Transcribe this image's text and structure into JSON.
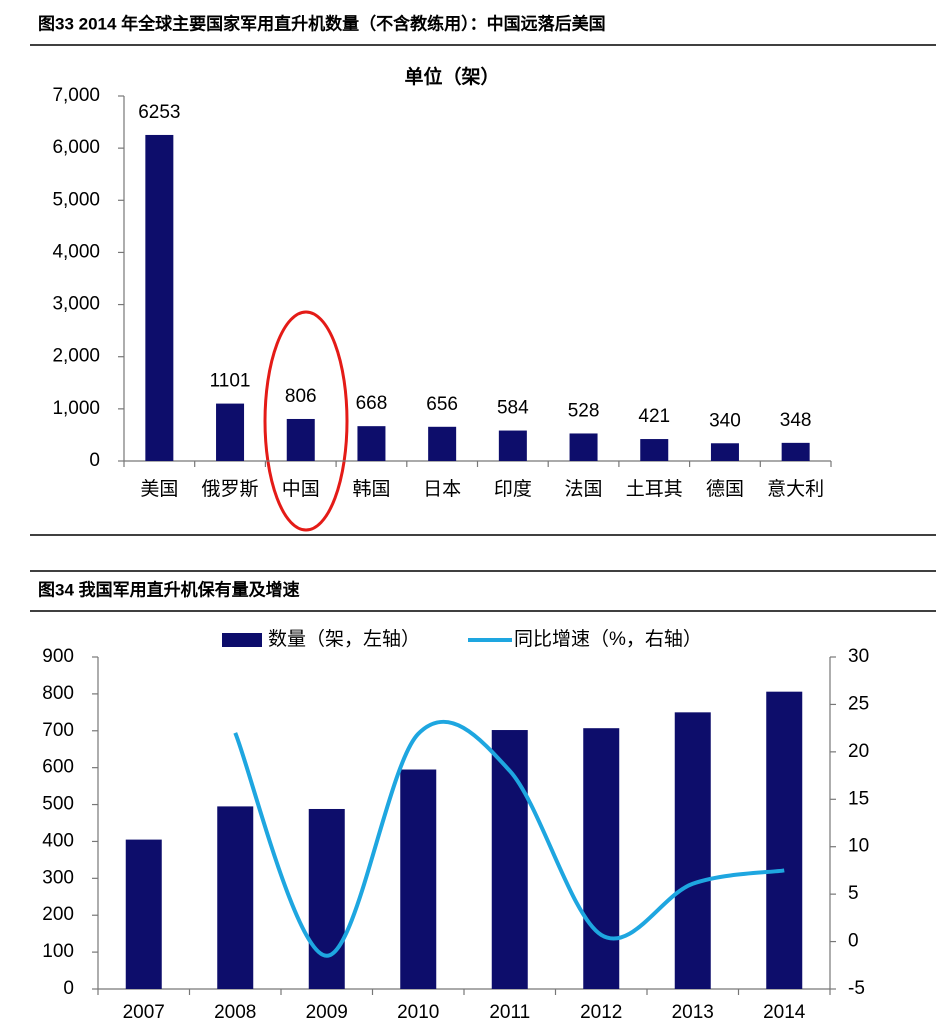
{
  "chart_data": [
    {
      "type": "bar",
      "title": "图33 2014 年全球主要国家军用直升机数量（不含教练用）：中国远落后美国",
      "subtitle": "单位（架）",
      "categories": [
        "美国",
        "俄罗斯",
        "中国",
        "韩国",
        "日本",
        "印度",
        "法国",
        "土耳其",
        "德国",
        "意大利"
      ],
      "values": [
        6253,
        1101,
        806,
        668,
        656,
        584,
        528,
        421,
        340,
        348
      ],
      "color": "#0d0d6b",
      "ylim": [
        0,
        7000
      ],
      "yticks": [
        0,
        {
          "value": 1000,
          "label": "1,000"
        },
        {
          "value": 2000,
          "label": "2,000"
        },
        {
          "value": 3000,
          "label": "3,000"
        },
        {
          "value": 4000,
          "label": "4,000"
        },
        {
          "value": 5000,
          "label": "5,000"
        },
        {
          "value": 6000,
          "label": "6,000"
        },
        {
          "value": 7000,
          "label": "7,000"
        }
      ],
      "grid": false
    },
    {
      "type": "bar-line",
      "title": "图34 我国军用直升机保有量及增速",
      "categories": [
        "2007",
        "2008",
        "2009",
        "2010",
        "2011",
        "2012",
        "2013",
        "2014"
      ],
      "series": [
        {
          "name": "数量（架，左轴）",
          "color": "#0d0d6b",
          "type": "bar",
          "values": [
            405,
            495,
            488,
            595,
            702,
            707,
            750,
            806
          ]
        },
        {
          "name": "同比增速（%，右轴）",
          "color": "#1ea6e0",
          "type": "line",
          "axis": "y2",
          "values": [
            null,
            22,
            -1.5,
            21.9,
            18,
            0.7,
            6.1,
            7.5
          ]
        }
      ],
      "ylim": [
        0,
        900
      ],
      "yticks": [
        0,
        100,
        200,
        300,
        400,
        500,
        600,
        700,
        800,
        900
      ],
      "y2lim": [
        -5,
        30
      ],
      "y2ticks": [
        -5,
        0,
        5,
        10,
        15,
        20,
        25,
        30
      ],
      "grid": false
    }
  ]
}
